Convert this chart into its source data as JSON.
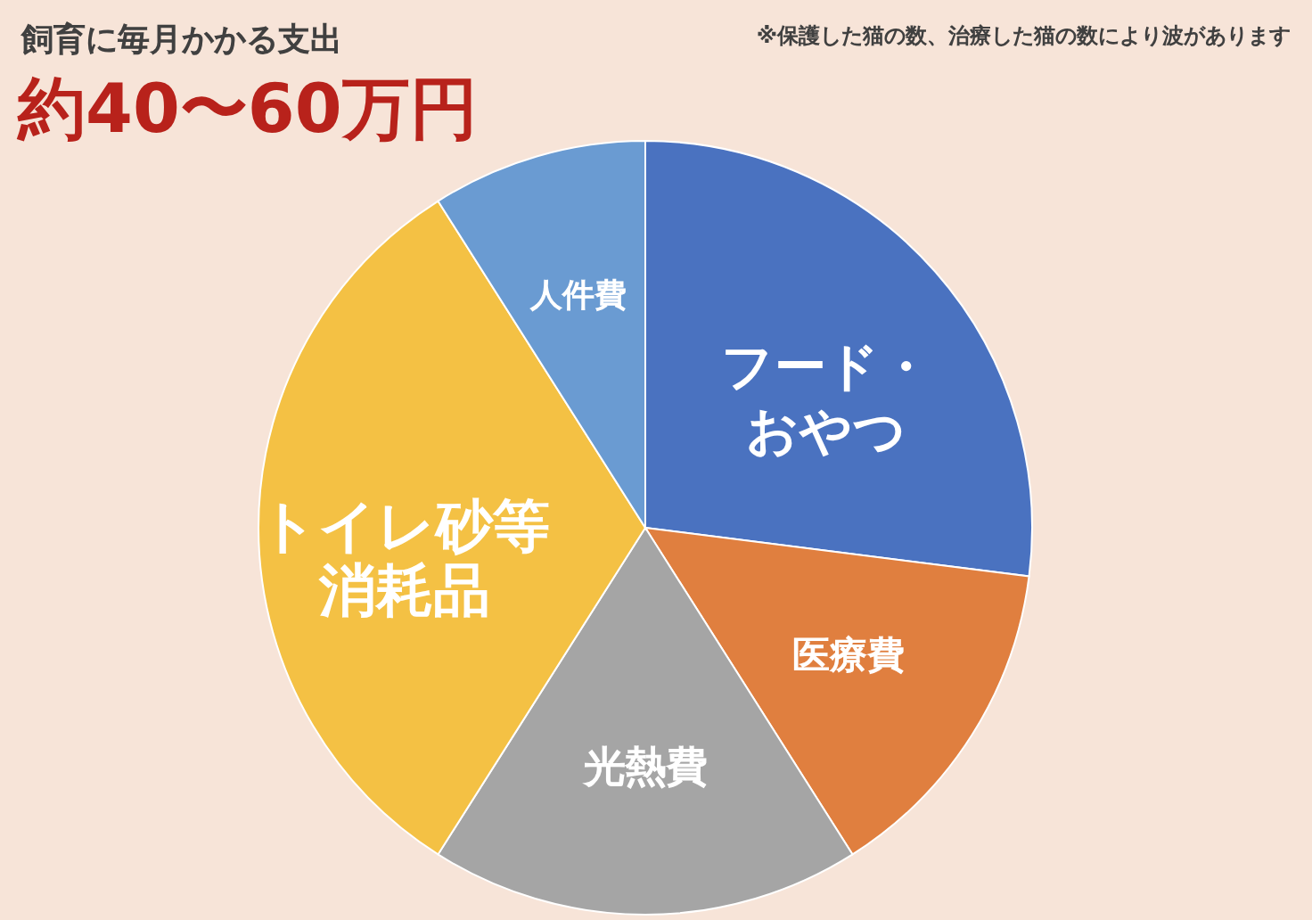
{
  "chart_data": {
    "type": "pie",
    "title": "飼育に毎月かかる支出",
    "subtitle": "約40〜60万円",
    "annotations": [
      "※保護した猫の数、治療した猫の数により波があります"
    ],
    "categories": [
      "フード・おやつ",
      "医療費",
      "光熱費",
      "トイレ砂等消耗品",
      "人件費"
    ],
    "values": [
      27,
      14,
      18,
      32,
      9
    ],
    "colors": [
      "#4a72c0",
      "#e07f3f",
      "#a5a5a5",
      "#f4c144",
      "#6a9bd2"
    ]
  }
}
